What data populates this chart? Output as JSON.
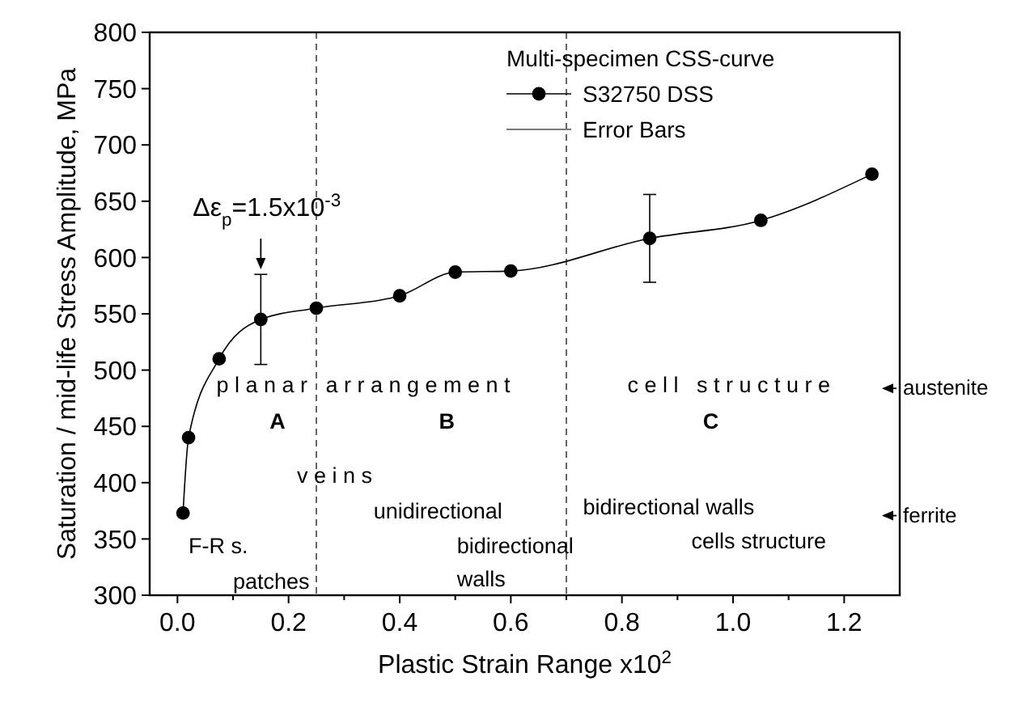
{
  "chart_data": {
    "type": "line",
    "xlabel": "Plastic Strain Range x10$^{2}$",
    "ylabel": "Saturation / mid-life Stress Amplitude, MPa",
    "legend_title": "Multi-specimen CSS-curve",
    "x": [
      0.01,
      0.02,
      0.075,
      0.15,
      0.25,
      0.4,
      0.5,
      0.6,
      0.85,
      1.05,
      1.25
    ],
    "series": [
      {
        "name": "S32750 DSS",
        "color": "#000000",
        "values": [
          373,
          440,
          510,
          545,
          555,
          566,
          587,
          588,
          617,
          633,
          674
        ],
        "errors": [
          null,
          null,
          null,
          40,
          null,
          null,
          null,
          null,
          39,
          null,
          null
        ]
      }
    ],
    "xlim": [
      -0.05,
      1.3
    ],
    "ylim": [
      300,
      800
    ],
    "xticks": [
      {
        "value": 0,
        "label": "0.0"
      },
      {
        "value": 0.1,
        "label": null
      },
      {
        "value": 0.2,
        "label": "0.2"
      },
      {
        "value": 0.3,
        "label": null
      },
      {
        "value": 0.4,
        "label": "0.4"
      },
      {
        "value": 0.5,
        "label": null
      },
      {
        "value": 0.6,
        "label": "0.6"
      },
      {
        "value": 0.7,
        "label": null
      },
      {
        "value": 0.8,
        "label": "0.8"
      },
      {
        "value": 0.9,
        "label": null
      },
      {
        "value": 1,
        "label": "1.0"
      },
      {
        "value": 1.1,
        "label": null
      },
      {
        "value": 1.2,
        "label": "1.2"
      }
    ],
    "yticks": [
      300,
      350,
      400,
      450,
      500,
      550,
      600,
      650,
      700,
      750,
      800
    ],
    "ref_lines": [
      {
        "axis": "x",
        "value": 0.25,
        "line_style": "dashed"
      },
      {
        "axis": "x",
        "value": 0.7,
        "line_style": "dashed"
      }
    ],
    "annotations": [
      "Δε$_{p}$=1.5x10$^{-3}$",
      "Error Bars",
      "p l a n a r   a r r a n g e m e n t",
      "c e l l   s t r u c t u r e",
      "austenite",
      "A",
      "B",
      "C",
      "v e i n s",
      "unidirectional",
      "bidirectional",
      "walls",
      "F-R s.",
      "patches",
      "bidirectional walls",
      "cells structure",
      "ferrite"
    ],
    "marker": "circle",
    "line_style": "solid",
    "legend": "top right",
    "grid": false
  }
}
